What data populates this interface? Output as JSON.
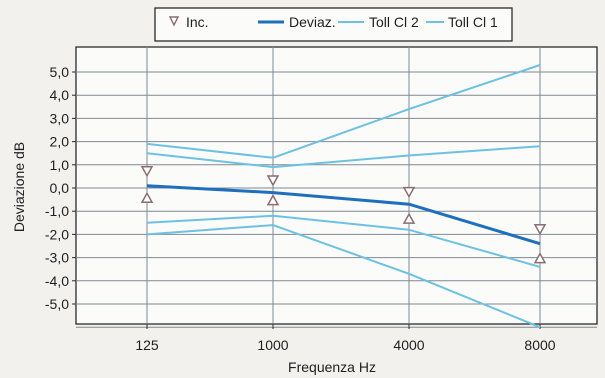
{
  "chart_data": {
    "type": "line",
    "xlabel": "Frequenza Hz",
    "ylabel": "Deviazione dB",
    "categories": [
      "125",
      "1000",
      "4000",
      "8000"
    ],
    "y_ticks": [
      "5,0",
      "4,0",
      "3,0",
      "2,0",
      "1,0",
      "0,0",
      "-1,0",
      "-2,0",
      "-3,0",
      "-4,0",
      "-5,0"
    ],
    "ylim": [
      -6.0,
      6.0
    ],
    "grid": true,
    "legend_position": "top",
    "legend": [
      {
        "label": "Inc.",
        "kind": "triangle-down",
        "color": "#8a6d70"
      },
      {
        "label": "Deviaz.",
        "kind": "line",
        "color": "#1f6fbf"
      },
      {
        "label": "Toll Cl 2",
        "kind": "line",
        "color": "#6cc2e4"
      },
      {
        "label": "Toll Cl 1",
        "kind": "line",
        "color": "#6cc2e4"
      }
    ],
    "series": [
      {
        "name": "Deviaz.",
        "color": "#1f6fbf",
        "values": [
          0.1,
          -0.2,
          -0.7,
          -2.4
        ]
      },
      {
        "name": "Toll Cl 2",
        "color": "#6cc2e4",
        "values": [
          1.9,
          1.3,
          3.4,
          5.3
        ]
      },
      {
        "name": "Toll Cl 2",
        "color": "#6cc2e4",
        "values": [
          -2.0,
          -1.6,
          -3.7,
          -6.0
        ]
      },
      {
        "name": "Toll Cl 1",
        "color": "#6cc2e4",
        "values": [
          1.5,
          0.9,
          1.4,
          1.8
        ]
      },
      {
        "name": "Toll Cl 1",
        "color": "#6cc2e4",
        "values": [
          -1.5,
          -1.2,
          -1.8,
          -3.4
        ]
      }
    ],
    "inc_markers": {
      "color": "#8a6d70",
      "upper": [
        0.7,
        0.3,
        -0.2,
        -1.8
      ],
      "lower": [
        -0.4,
        -0.5,
        -1.3,
        -3.0
      ]
    }
  }
}
